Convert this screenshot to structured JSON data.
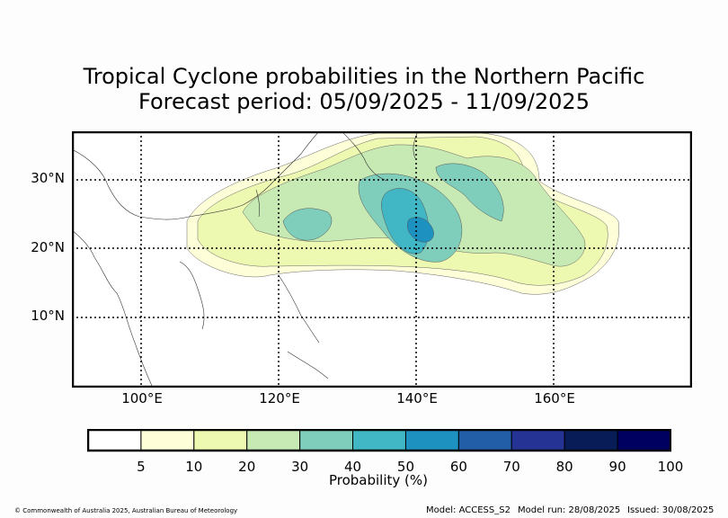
{
  "title_line1": "Tropical Cyclone probabilities in the Northern Pacific",
  "title_line2": "Forecast period: 05/09/2025 - 11/09/2025",
  "lat_labels": [
    "30°N",
    "20°N",
    "10°N"
  ],
  "lon_labels": [
    "100°E",
    "120°E",
    "140°E",
    "160°E"
  ],
  "colorbar": {
    "ticks": [
      "5",
      "10",
      "20",
      "30",
      "40",
      "50",
      "60",
      "70",
      "80",
      "90",
      "100"
    ],
    "colors": [
      "#ffffff",
      "#fefed8",
      "#edf8b0",
      "#c7e9b4",
      "#7fcdbb",
      "#41b6c4",
      "#1d91c0",
      "#225ea8",
      "#253494",
      "#081d58",
      "#000060"
    ],
    "label": "Probability (%)"
  },
  "footer": {
    "copyright": "© Commonwealth of Australia 2025, Australian Bureau of Meteorology",
    "model": "Model: ACCESS_S2",
    "model_run": "Model run: 28/08/2025",
    "issued": "Issued: 30/08/2025"
  }
}
